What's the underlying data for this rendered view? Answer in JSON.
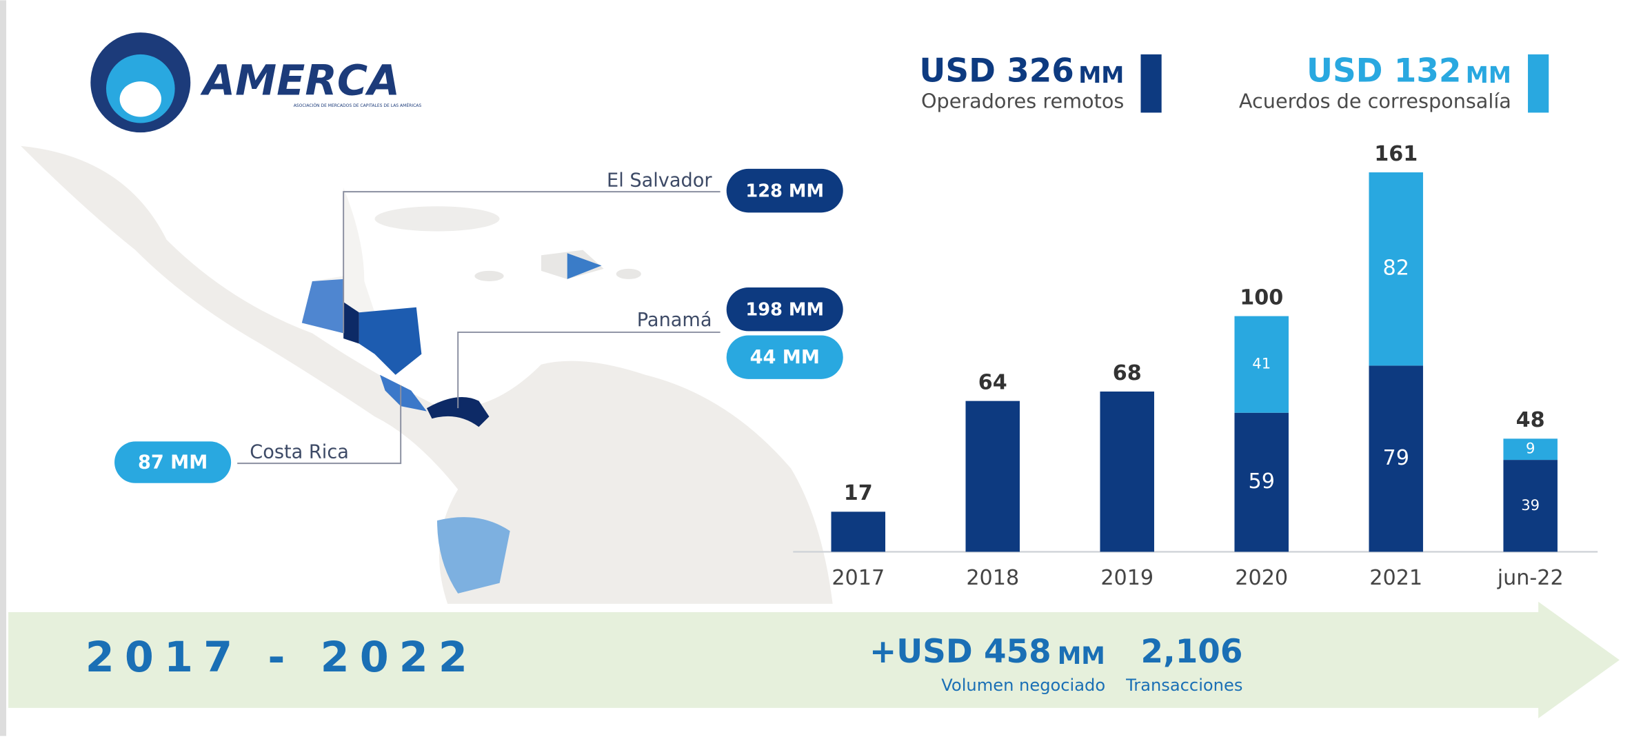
{
  "logo": {
    "name": "AMERCA",
    "tagline": "ASOCIACIÓN DE MERCADOS DE CAPITALES DE LAS AMÉRICAS"
  },
  "legend": [
    {
      "amount": "USD 326",
      "unit": "MM"
    },
    {
      "amount": "USD 132",
      "unit": "MM"
    }
  ],
  "map": {
    "el_salvador": {
      "name": "El Salvador",
      "amounts": [
        "128 MM"
      ]
    },
    "panama": {
      "name": "Panamá",
      "amounts": [
        "198 MM",
        "44 MM"
      ]
    },
    "costa_rica": {
      "name": "Costa Rica",
      "amounts": [
        "87 MM"
      ]
    }
  },
  "chart_data": {
    "type": "stacked_bar",
    "categories": [
      "2017",
      "2018",
      "2019",
      "2020",
      "2021",
      "jun-22"
    ],
    "series": [
      {
        "name": "Operadores remotos",
        "color": "#0d3a80",
        "values": [
          17,
          64,
          68,
          59,
          79,
          39
        ]
      },
      {
        "name": "Acuerdos de corresponsalía",
        "color": "#29a8e0",
        "values": [
          null,
          null,
          null,
          41,
          82,
          9
        ]
      }
    ],
    "total_labels": [
      17,
      64,
      68,
      100,
      161,
      48
    ],
    "ylim": [
      0,
      170
    ]
  },
  "footer": {
    "period": "2017 - 2022",
    "volume": {
      "amount": "+USD 458",
      "unit": "MM",
      "label": "Volumen negociado"
    },
    "transactions": {
      "amount": "2,106",
      "label": "Transacciones"
    }
  }
}
